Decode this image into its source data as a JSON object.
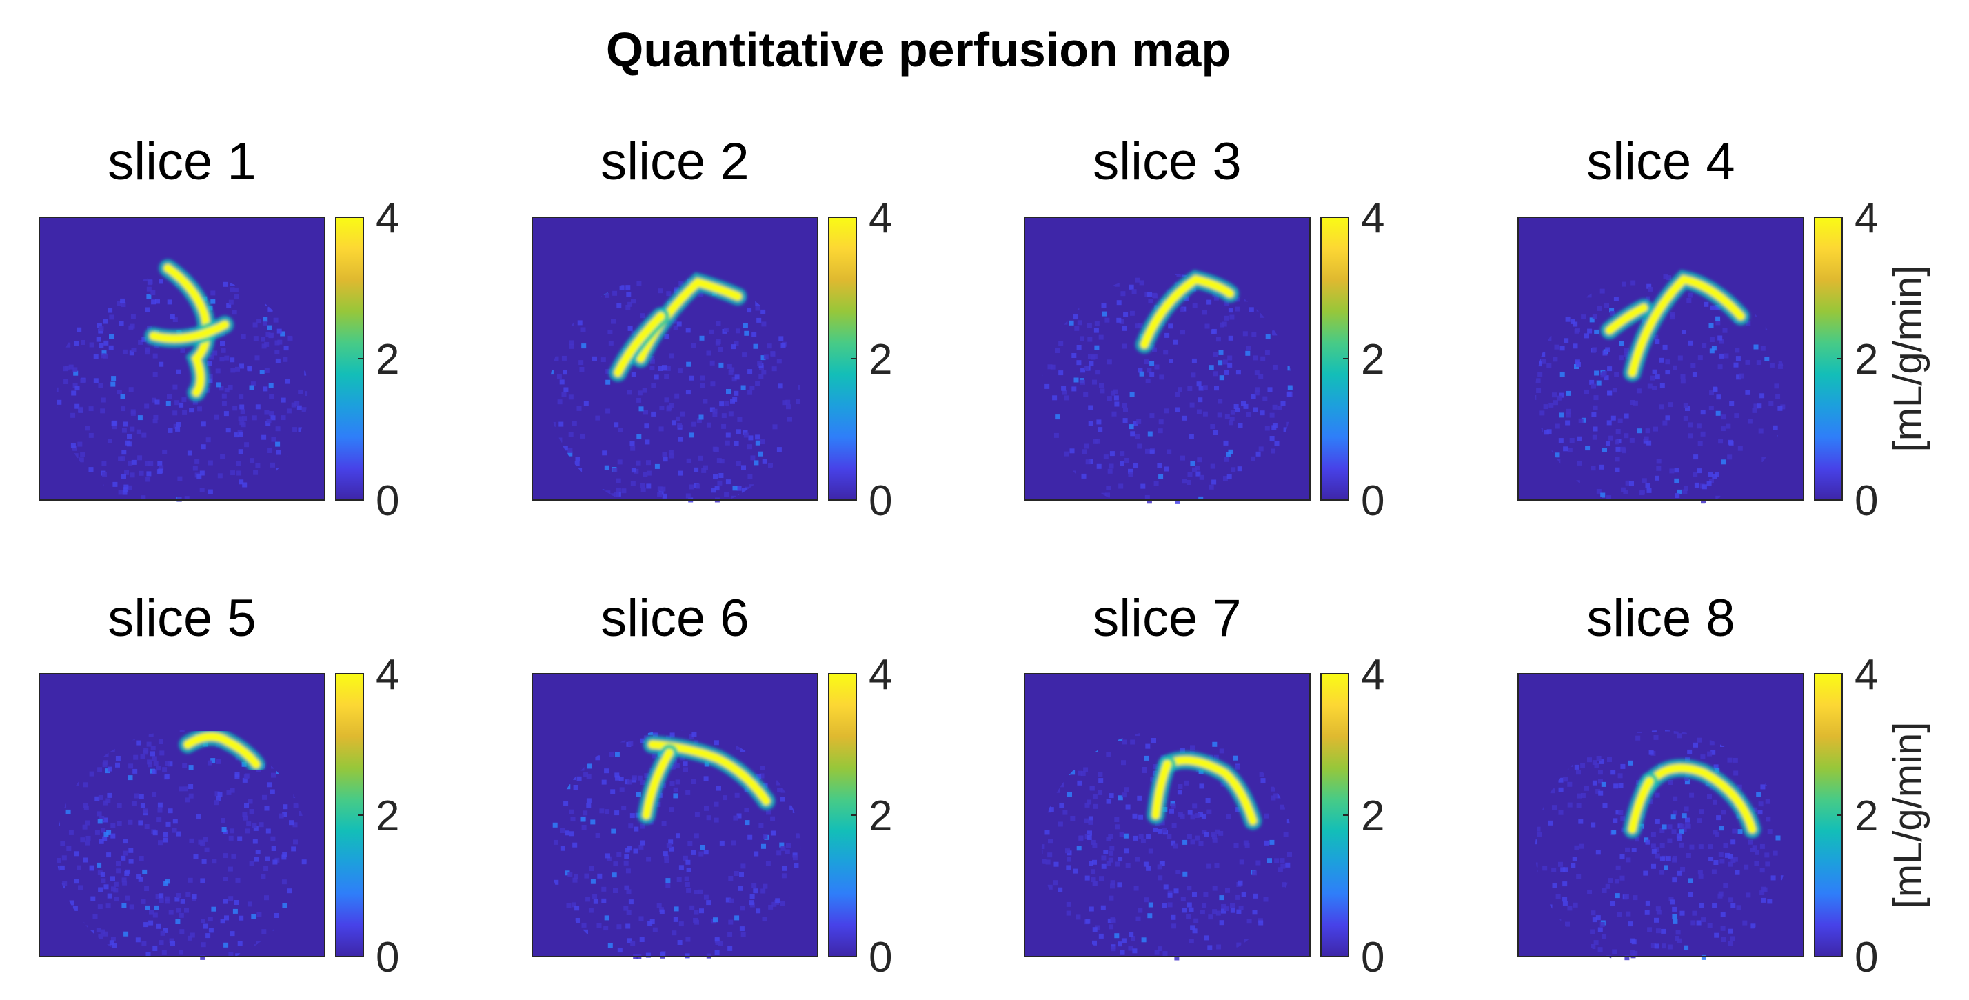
{
  "title": "Quantitative perfusion map",
  "colorbar_unit": "[mL/g/min]",
  "colormap": [
    "#3e26a8",
    "#4742e8",
    "#2f7ef9",
    "#1d9fdd",
    "#13beb8",
    "#48cb86",
    "#97c73a",
    "#dfb930",
    "#fcd734",
    "#f9fb15"
  ],
  "chart_data": {
    "type": "heatmap",
    "title": "Quantitative perfusion map",
    "colorbar": {
      "min": 0,
      "max": 4,
      "ticks": [
        0,
        2,
        4
      ],
      "label": "[mL/g/min]"
    },
    "panels": [
      {
        "title": "slice 1"
      },
      {
        "title": "slice 2"
      },
      {
        "title": "slice 3"
      },
      {
        "title": "slice 4"
      },
      {
        "title": "slice 5"
      },
      {
        "title": "slice 6"
      },
      {
        "title": "slice 7"
      },
      {
        "title": "slice 8"
      }
    ]
  }
}
